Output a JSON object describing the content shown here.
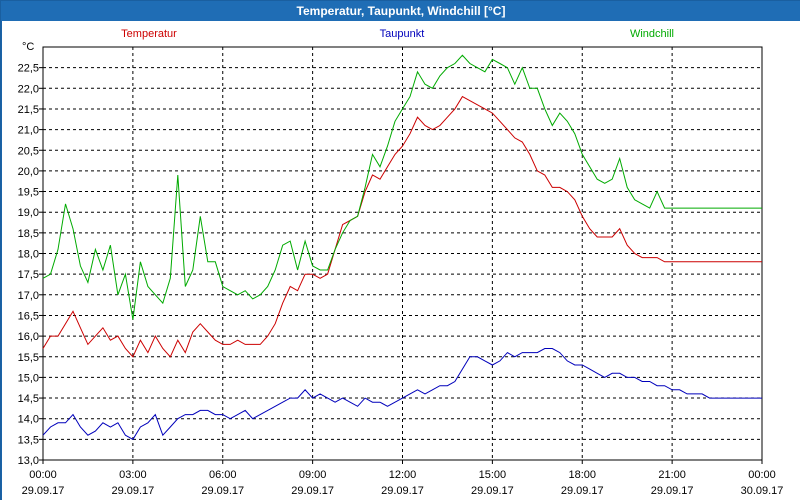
{
  "window": {
    "title": "Temperatur, Taupunkt, Windchill [°C]"
  },
  "chart_data": {
    "type": "line",
    "title": "Temperatur, Taupunkt, Windchill [°C]",
    "ylabel": "°C",
    "xlabel": "",
    "ylim": [
      13.0,
      23.0
    ],
    "xlim_hours": [
      0,
      24
    ],
    "grid": true,
    "y_ticks": [
      "13,0",
      "13,5",
      "14,0",
      "14,5",
      "15,0",
      "15,5",
      "16,0",
      "16,5",
      "17,0",
      "17,5",
      "18,0",
      "18,5",
      "19,0",
      "19,5",
      "20,0",
      "20,5",
      "21,0",
      "21,5",
      "22,0",
      "22,5"
    ],
    "x_ticks": [
      {
        "time": "00:00",
        "date": "29.09.17"
      },
      {
        "time": "03:00",
        "date": "29.09.17"
      },
      {
        "time": "06:00",
        "date": "29.09.17"
      },
      {
        "time": "09:00",
        "date": "29.09.17"
      },
      {
        "time": "12:00",
        "date": "29.09.17"
      },
      {
        "time": "15:00",
        "date": "29.09.17"
      },
      {
        "time": "18:00",
        "date": "29.09.17"
      },
      {
        "time": "21:00",
        "date": "29.09.17"
      },
      {
        "time": "00:00",
        "date": "30.09.17"
      }
    ],
    "series": [
      {
        "name": "Temperatur",
        "color": "#cc0000",
        "x_hours": [
          0,
          0.25,
          0.5,
          0.75,
          1,
          1.25,
          1.5,
          1.75,
          2,
          2.25,
          2.5,
          2.75,
          3,
          3.25,
          3.5,
          3.75,
          4,
          4.25,
          4.5,
          4.75,
          5,
          5.25,
          5.5,
          5.75,
          6,
          6.25,
          6.5,
          6.75,
          7,
          7.25,
          7.5,
          7.75,
          8,
          8.25,
          8.5,
          8.75,
          9,
          9.25,
          9.5,
          9.75,
          10,
          10.25,
          10.5,
          10.75,
          11,
          11.25,
          11.5,
          11.75,
          12,
          12.25,
          12.5,
          12.75,
          13,
          13.25,
          13.5,
          13.75,
          14,
          14.25,
          14.5,
          14.75,
          15,
          15.25,
          15.5,
          15.75,
          16,
          16.25,
          16.5,
          16.75,
          17,
          17.25,
          17.5,
          17.75,
          18,
          18.25,
          18.5,
          18.75,
          19,
          19.25,
          19.5,
          19.75,
          20,
          20.25,
          20.5,
          20.75,
          21,
          21.25,
          21.5,
          21.75,
          22,
          22.25,
          22.5,
          22.75,
          23,
          23.25,
          23.5,
          23.75,
          24
        ],
        "values": [
          15.7,
          16.0,
          16.0,
          16.3,
          16.6,
          16.2,
          15.8,
          16.0,
          16.2,
          15.9,
          16.0,
          15.7,
          15.5,
          15.9,
          15.6,
          16.0,
          15.7,
          15.5,
          15.9,
          15.6,
          16.1,
          16.3,
          16.1,
          15.9,
          15.8,
          15.8,
          15.9,
          15.8,
          15.8,
          15.8,
          16.0,
          16.3,
          16.8,
          17.2,
          17.1,
          17.5,
          17.5,
          17.4,
          17.5,
          18.1,
          18.7,
          18.8,
          18.9,
          19.5,
          19.9,
          19.8,
          20.1,
          20.4,
          20.6,
          20.9,
          21.3,
          21.1,
          21.0,
          21.1,
          21.3,
          21.5,
          21.8,
          21.7,
          21.6,
          21.5,
          21.4,
          21.2,
          21.0,
          20.8,
          20.7,
          20.4,
          20.0,
          19.9,
          19.6,
          19.6,
          19.5,
          19.3,
          18.9,
          18.6,
          18.4,
          18.4,
          18.4,
          18.6,
          18.2,
          18.0,
          17.9,
          17.9,
          17.9,
          17.8,
          17.8,
          17.8,
          17.8,
          17.8,
          17.8,
          17.8,
          17.8,
          17.8,
          17.8,
          17.8,
          17.8,
          17.8,
          17.8
        ]
      },
      {
        "name": "Taupunkt",
        "color": "#0000bb",
        "x_hours": [
          0,
          0.25,
          0.5,
          0.75,
          1,
          1.25,
          1.5,
          1.75,
          2,
          2.25,
          2.5,
          2.75,
          3,
          3.25,
          3.5,
          3.75,
          4,
          4.25,
          4.5,
          4.75,
          5,
          5.25,
          5.5,
          5.75,
          6,
          6.25,
          6.5,
          6.75,
          7,
          7.25,
          7.5,
          7.75,
          8,
          8.25,
          8.5,
          8.75,
          9,
          9.25,
          9.5,
          9.75,
          10,
          10.25,
          10.5,
          10.75,
          11,
          11.25,
          11.5,
          11.75,
          12,
          12.25,
          12.5,
          12.75,
          13,
          13.25,
          13.5,
          13.75,
          14,
          14.25,
          14.5,
          14.75,
          15,
          15.25,
          15.5,
          15.75,
          16,
          16.25,
          16.5,
          16.75,
          17,
          17.25,
          17.5,
          17.75,
          18,
          18.25,
          18.5,
          18.75,
          19,
          19.25,
          19.5,
          19.75,
          20,
          20.25,
          20.5,
          20.75,
          21,
          21.25,
          21.5,
          21.75,
          22,
          22.25,
          22.5,
          22.75,
          23,
          23.25,
          23.5,
          23.75,
          24
        ],
        "values": [
          13.6,
          13.8,
          13.9,
          13.9,
          14.1,
          13.8,
          13.6,
          13.7,
          13.9,
          13.8,
          13.9,
          13.6,
          13.5,
          13.8,
          13.9,
          14.1,
          13.6,
          13.8,
          14.0,
          14.1,
          14.1,
          14.2,
          14.2,
          14.1,
          14.1,
          14.0,
          14.1,
          14.2,
          14.0,
          14.1,
          14.2,
          14.3,
          14.4,
          14.5,
          14.5,
          14.7,
          14.5,
          14.6,
          14.5,
          14.4,
          14.5,
          14.4,
          14.3,
          14.5,
          14.4,
          14.4,
          14.3,
          14.4,
          14.5,
          14.6,
          14.7,
          14.6,
          14.7,
          14.8,
          14.8,
          14.9,
          15.2,
          15.5,
          15.5,
          15.4,
          15.3,
          15.4,
          15.6,
          15.5,
          15.6,
          15.6,
          15.6,
          15.7,
          15.7,
          15.6,
          15.4,
          15.3,
          15.3,
          15.2,
          15.1,
          15.0,
          15.1,
          15.1,
          15.0,
          15.0,
          14.9,
          14.9,
          14.8,
          14.8,
          14.7,
          14.7,
          14.6,
          14.6,
          14.6,
          14.5,
          14.5,
          14.5,
          14.5,
          14.5,
          14.5,
          14.5,
          14.5
        ]
      },
      {
        "name": "Windchill",
        "color": "#00aa00",
        "x_hours": [
          0,
          0.25,
          0.5,
          0.75,
          1,
          1.25,
          1.5,
          1.75,
          2,
          2.25,
          2.5,
          2.75,
          3,
          3.25,
          3.5,
          3.75,
          4,
          4.25,
          4.5,
          4.75,
          5,
          5.25,
          5.5,
          5.75,
          6,
          6.25,
          6.5,
          6.75,
          7,
          7.25,
          7.5,
          7.75,
          8,
          8.25,
          8.5,
          8.75,
          9,
          9.25,
          9.5,
          9.75,
          10,
          10.25,
          10.5,
          10.75,
          11,
          11.25,
          11.5,
          11.75,
          12,
          12.25,
          12.5,
          12.75,
          13,
          13.25,
          13.5,
          13.75,
          14,
          14.25,
          14.5,
          14.75,
          15,
          15.25,
          15.5,
          15.75,
          16,
          16.25,
          16.5,
          16.75,
          17,
          17.25,
          17.5,
          17.75,
          18,
          18.25,
          18.5,
          18.75,
          19,
          19.25,
          19.5,
          19.75,
          20,
          20.25,
          20.5,
          20.75,
          21,
          21.25,
          21.5,
          21.75,
          22,
          22.25,
          22.5,
          22.75,
          23,
          23.25,
          23.5,
          23.75,
          24
        ],
        "values": [
          17.4,
          17.5,
          18.1,
          19.2,
          18.6,
          17.7,
          17.3,
          18.1,
          17.6,
          18.2,
          17.0,
          17.5,
          16.4,
          17.8,
          17.2,
          17.0,
          16.8,
          17.4,
          19.9,
          17.2,
          17.6,
          18.9,
          17.8,
          17.8,
          17.2,
          17.1,
          17.0,
          17.1,
          16.9,
          17.0,
          17.2,
          17.6,
          18.2,
          18.3,
          17.6,
          18.3,
          17.7,
          17.6,
          17.6,
          18.1,
          18.5,
          18.8,
          18.9,
          19.6,
          20.4,
          20.1,
          20.6,
          21.2,
          21.5,
          21.8,
          22.4,
          22.1,
          22.0,
          22.3,
          22.5,
          22.6,
          22.8,
          22.6,
          22.5,
          22.4,
          22.7,
          22.6,
          22.5,
          22.1,
          22.5,
          22.0,
          22.0,
          21.5,
          21.1,
          21.4,
          21.2,
          20.9,
          20.4,
          20.1,
          19.8,
          19.7,
          19.8,
          20.3,
          19.6,
          19.3,
          19.2,
          19.1,
          19.5,
          19.1,
          19.1,
          19.1,
          19.1,
          19.1,
          19.1,
          19.1,
          19.1,
          19.1,
          19.1,
          19.1,
          19.1,
          19.1,
          19.1
        ]
      }
    ]
  }
}
